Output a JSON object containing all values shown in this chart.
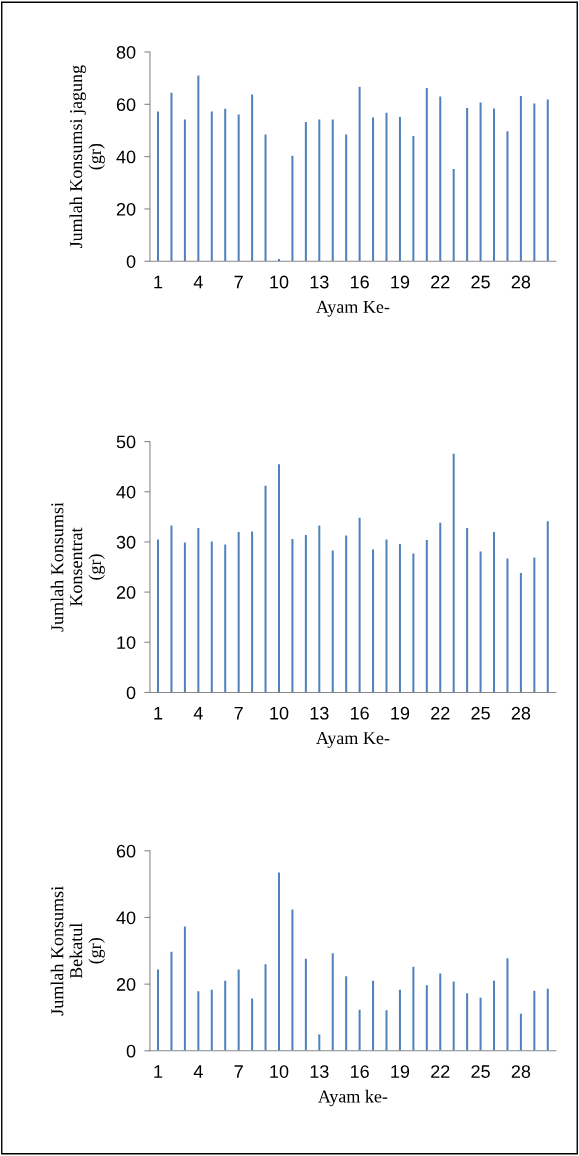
{
  "chart_data": [
    {
      "type": "bar",
      "xlabel": "Ayam Ke-",
      "ylabel": "Jumlah Konsumsi jagung\n(gr)",
      "color": "#4f81bd",
      "ylim": [
        0,
        80
      ],
      "yticks": [
        0,
        20,
        40,
        60,
        80
      ],
      "grid": false,
      "legend": false,
      "categories": [
        "1",
        null,
        null,
        "4",
        null,
        null,
        "7",
        null,
        null,
        "10",
        null,
        null,
        "13",
        null,
        null,
        "16",
        null,
        null,
        "19",
        null,
        null,
        "22",
        null,
        null,
        "25",
        null,
        null,
        "28",
        null,
        null
      ],
      "values": [
        57.3,
        64.4,
        54.2,
        71.0,
        57.3,
        58.3,
        56.1,
        63.8,
        48.5,
        0.9,
        40.3,
        53.2,
        54.2,
        54.2,
        48.5,
        66.7,
        55.0,
        56.8,
        55.2,
        47.9,
        66.2,
        63.0,
        35.3,
        58.6,
        60.7,
        58.4,
        49.7,
        63.2,
        60.3,
        61.8
      ]
    },
    {
      "type": "bar",
      "xlabel": "Ayam Ke-",
      "ylabel": "Jumlah Konsumsi\nKonsentrat\n(gr)",
      "color": "#4f81bd",
      "ylim": [
        0,
        50
      ],
      "yticks": [
        0,
        10,
        20,
        30,
        40,
        50
      ],
      "grid": false,
      "legend": false,
      "categories": [
        "1",
        null,
        null,
        "4",
        null,
        null,
        "7",
        null,
        null,
        "10",
        null,
        null,
        "13",
        null,
        null,
        "16",
        null,
        null,
        "19",
        null,
        null,
        "22",
        null,
        null,
        "25",
        null,
        null,
        "28",
        null,
        null
      ],
      "values": [
        30.5,
        33.3,
        29.9,
        32.8,
        30.1,
        29.5,
        32.0,
        32.1,
        41.2,
        45.5,
        30.6,
        31.4,
        33.3,
        28.3,
        31.3,
        34.8,
        28.5,
        30.5,
        29.6,
        27.7,
        30.4,
        33.8,
        47.6,
        32.8,
        28.1,
        32.0,
        26.7,
        23.8,
        26.9,
        34.1
      ]
    },
    {
      "type": "bar",
      "xlabel": "Ayam ke-",
      "ylabel": "Jumlah Konsumsi\nBekatul\n(gr)",
      "color": "#4f81bd",
      "ylim": [
        0,
        60
      ],
      "yticks": [
        0,
        20,
        40,
        60
      ],
      "grid": false,
      "legend": false,
      "categories": [
        "1",
        null,
        null,
        "4",
        null,
        null,
        "7",
        null,
        null,
        "10",
        null,
        null,
        "13",
        null,
        null,
        "16",
        null,
        null,
        "19",
        null,
        null,
        "22",
        null,
        null,
        "25",
        null,
        null,
        "28",
        null,
        null
      ],
      "values": [
        24.4,
        29.7,
        37.3,
        17.9,
        18.3,
        21.0,
        24.4,
        15.7,
        26.0,
        53.5,
        42.4,
        27.6,
        4.9,
        29.3,
        22.4,
        12.3,
        21.0,
        12.2,
        18.3,
        25.2,
        19.7,
        23.2,
        20.8,
        17.3,
        15.9,
        21.0,
        27.8,
        11.1,
        18.0,
        18.6
      ]
    }
  ]
}
